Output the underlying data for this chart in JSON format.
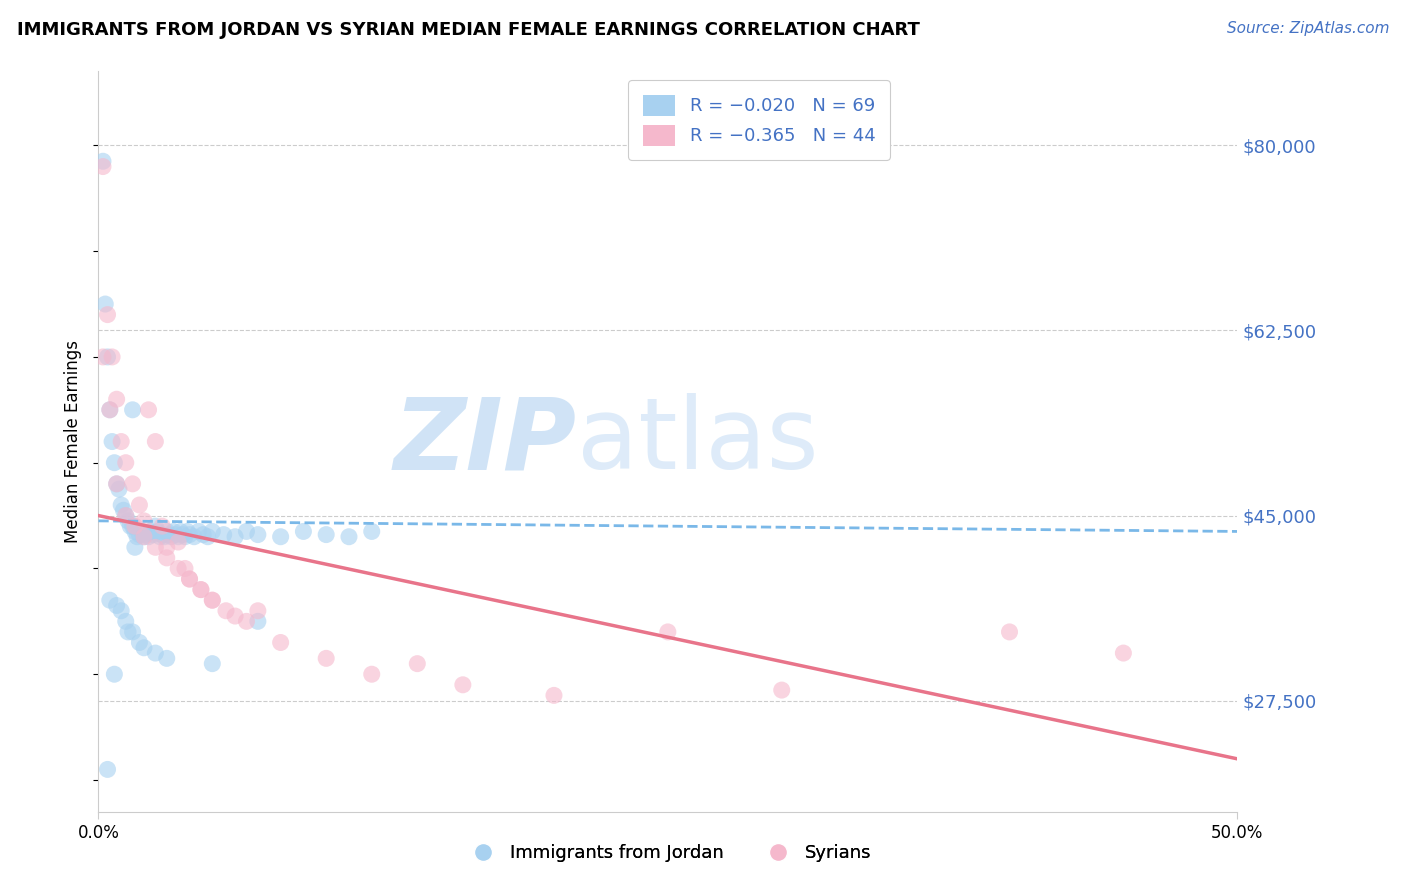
{
  "title": "IMMIGRANTS FROM JORDAN VS SYRIAN MEDIAN FEMALE EARNINGS CORRELATION CHART",
  "source_text": "Source: ZipAtlas.com",
  "ylabel": "Median Female Earnings",
  "ytick_labels": [
    "$27,500",
    "$45,000",
    "$62,500",
    "$80,000"
  ],
  "ytick_values": [
    27500,
    45000,
    62500,
    80000
  ],
  "xmin": 0.0,
  "xmax": 0.5,
  "ymin": 17000,
  "ymax": 87000,
  "legend_r1": "R = -0.020",
  "legend_n1": "N = 69",
  "legend_r2": "R = -0.365",
  "legend_n2": "N = 44",
  "color_jordan": "#a8d1f0",
  "color_syrian": "#f5b8cc",
  "color_jordan_line": "#7ab8e8",
  "color_syrian_line": "#e8748a",
  "legend_text_color": "#4472c4",
  "ytick_color": "#4472c4",
  "source_color": "#4472c4",
  "watermark_color": "#c8dff5",
  "jordan_x": [
    0.002,
    0.003,
    0.004,
    0.005,
    0.006,
    0.007,
    0.008,
    0.009,
    0.01,
    0.011,
    0.012,
    0.013,
    0.014,
    0.015,
    0.015,
    0.016,
    0.017,
    0.018,
    0.019,
    0.02,
    0.021,
    0.022,
    0.023,
    0.024,
    0.025,
    0.026,
    0.027,
    0.028,
    0.029,
    0.03,
    0.031,
    0.032,
    0.033,
    0.034,
    0.035,
    0.036,
    0.037,
    0.038,
    0.039,
    0.04,
    0.042,
    0.044,
    0.046,
    0.048,
    0.05,
    0.055,
    0.06,
    0.065,
    0.07,
    0.08,
    0.09,
    0.1,
    0.11,
    0.12,
    0.005,
    0.008,
    0.01,
    0.012,
    0.015,
    0.018,
    0.02,
    0.025,
    0.03,
    0.05,
    0.07,
    0.004,
    0.007,
    0.013,
    0.016
  ],
  "jordan_y": [
    78500,
    65000,
    60000,
    55000,
    52000,
    50000,
    48000,
    47500,
    46000,
    45500,
    45000,
    44500,
    44000,
    44000,
    55000,
    43500,
    43000,
    43200,
    43500,
    43000,
    43200,
    43000,
    43500,
    43200,
    44000,
    43500,
    43000,
    43200,
    43000,
    43500,
    43200,
    43000,
    43500,
    43200,
    43000,
    43500,
    43200,
    43000,
    43500,
    43200,
    43000,
    43500,
    43200,
    43000,
    43500,
    43200,
    43000,
    43500,
    43200,
    43000,
    43500,
    43200,
    43000,
    43500,
    37000,
    36500,
    36000,
    35000,
    34000,
    33000,
    32500,
    32000,
    31500,
    31000,
    35000,
    21000,
    30000,
    34000,
    42000
  ],
  "syrian_x": [
    0.002,
    0.004,
    0.006,
    0.008,
    0.01,
    0.012,
    0.015,
    0.018,
    0.02,
    0.022,
    0.025,
    0.028,
    0.03,
    0.035,
    0.038,
    0.04,
    0.045,
    0.05,
    0.056,
    0.065,
    0.002,
    0.005,
    0.008,
    0.012,
    0.016,
    0.02,
    0.025,
    0.03,
    0.035,
    0.04,
    0.045,
    0.05,
    0.06,
    0.07,
    0.08,
    0.1,
    0.12,
    0.14,
    0.16,
    0.2,
    0.25,
    0.3,
    0.4,
    0.45
  ],
  "syrian_y": [
    78000,
    64000,
    60000,
    56000,
    52000,
    50000,
    48000,
    46000,
    44500,
    55000,
    52000,
    44000,
    42000,
    42500,
    40000,
    39000,
    38000,
    37000,
    36000,
    35000,
    60000,
    55000,
    48000,
    45000,
    44000,
    43000,
    42000,
    41000,
    40000,
    39000,
    38000,
    37000,
    35500,
    36000,
    33000,
    31500,
    30000,
    31000,
    29000,
    28000,
    34000,
    28500,
    34000,
    32000
  ],
  "jordan_line_x": [
    0.0,
    0.5
  ],
  "jordan_line_y": [
    44500,
    43500
  ],
  "syrian_line_x": [
    0.0,
    0.5
  ],
  "syrian_line_y": [
    45000,
    22000
  ]
}
